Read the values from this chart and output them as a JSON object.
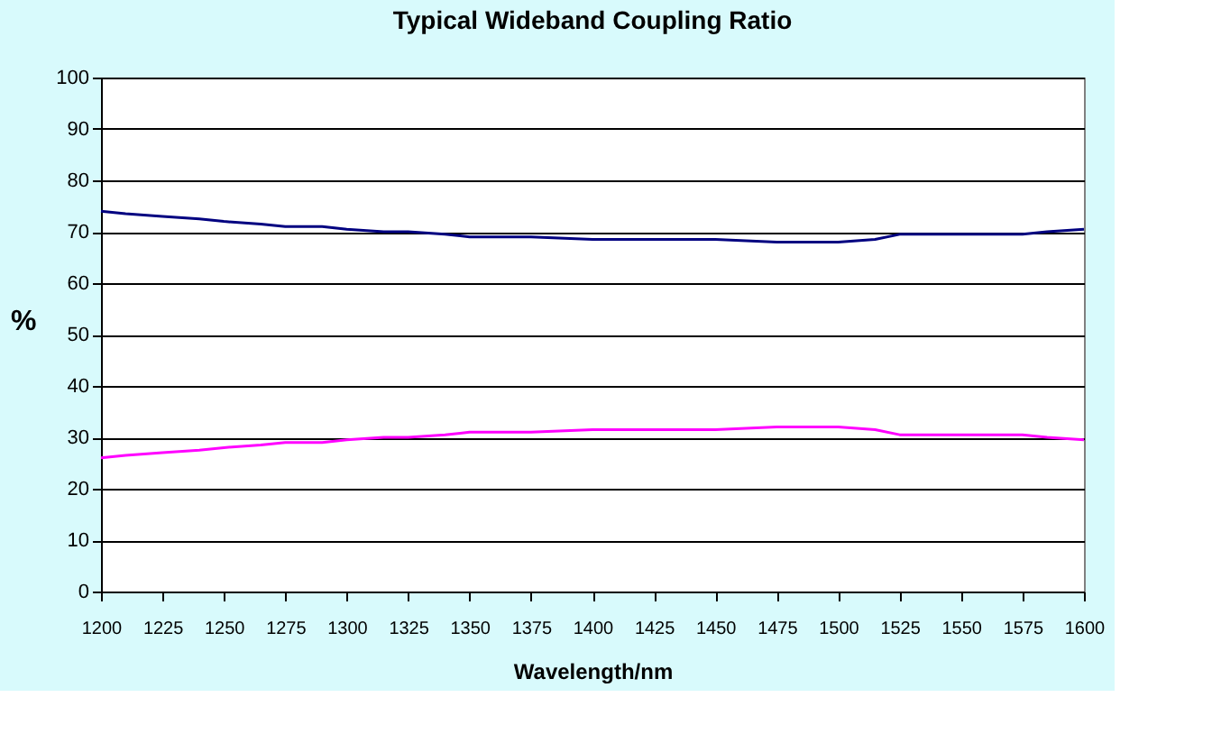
{
  "chart_data": {
    "type": "line",
    "title": "Typical Wideband Coupling Ratio",
    "xlabel": "Wavelength/nm",
    "ylabel": "%",
    "x": [
      1200,
      1210,
      1225,
      1240,
      1250,
      1265,
      1275,
      1290,
      1300,
      1315,
      1325,
      1340,
      1350,
      1375,
      1400,
      1425,
      1450,
      1475,
      1500,
      1515,
      1525,
      1550,
      1575,
      1585,
      1600
    ],
    "series": [
      {
        "color": "#000080",
        "values": [
          74,
          73.5,
          73,
          72.5,
          72,
          71.5,
          71,
          71,
          70.5,
          70,
          70,
          69.5,
          69,
          69,
          68.5,
          68.5,
          68.5,
          68,
          68,
          68.5,
          69.5,
          69.5,
          69.5,
          70,
          70.5
        ]
      },
      {
        "color": "#ff00ff",
        "values": [
          26,
          26.5,
          27,
          27.5,
          28,
          28.5,
          29,
          29,
          29.5,
          30,
          30,
          30.5,
          31,
          31,
          31.5,
          31.5,
          31.5,
          32,
          32,
          31.5,
          30.5,
          30.5,
          30.5,
          30,
          29.5
        ]
      }
    ],
    "xlim": [
      1200,
      1600
    ],
    "xticks": [
      1200,
      1225,
      1250,
      1275,
      1300,
      1325,
      1350,
      1375,
      1400,
      1425,
      1450,
      1475,
      1500,
      1525,
      1550,
      1575,
      1600
    ],
    "ylim": [
      0,
      100
    ],
    "yticks": [
      0,
      10,
      20,
      30,
      40,
      50,
      60,
      70,
      80,
      90,
      100
    ],
    "grid": "y",
    "legend": false,
    "marker": "none",
    "line_style": "solid"
  }
}
